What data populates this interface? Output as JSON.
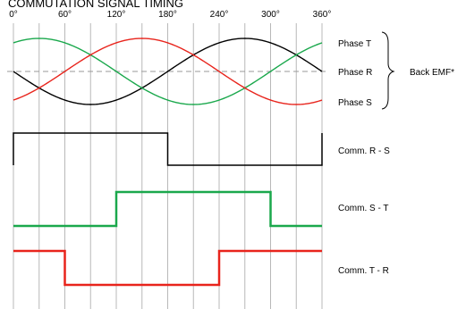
{
  "title": "COMMUTATION SIGNAL TIMING",
  "angle_ticks": [
    "0°",
    "60°",
    "120°",
    "180°",
    "240°",
    "300°",
    "360°"
  ],
  "colors": {
    "phase_t": "#e8241c",
    "phase_r": "#000000",
    "phase_s": "#1aa84c",
    "gridline": "#b8b8b8",
    "zero_line": "#9a9a9a"
  },
  "phase_labels": {
    "t": "Phase T",
    "r": "Phase R",
    "s": "Phase S"
  },
  "back_emf_label": "Back EMF*",
  "signals": [
    {
      "key": "rs",
      "label": "Comm. R - S",
      "color": "#000000",
      "high_start_deg": 0,
      "high_end_deg": 180
    },
    {
      "key": "st",
      "label": "Comm. S - T",
      "color": "#1aa84c",
      "high_start_deg": 120,
      "high_end_deg": 300
    },
    {
      "key": "tr",
      "label": "Comm. T - R",
      "color": "#e8241c",
      "high_start_deg": 240,
      "high_end_deg": 60
    }
  ],
  "back_emf": {
    "period_deg": 360,
    "waves": [
      {
        "key": "r",
        "color": "#000000",
        "phase_deg": 0
      },
      {
        "key": "s",
        "color": "#1aa84c",
        "phase_deg": 120
      },
      {
        "key": "t",
        "color": "#e8241c",
        "phase_deg": 240
      }
    ]
  }
}
